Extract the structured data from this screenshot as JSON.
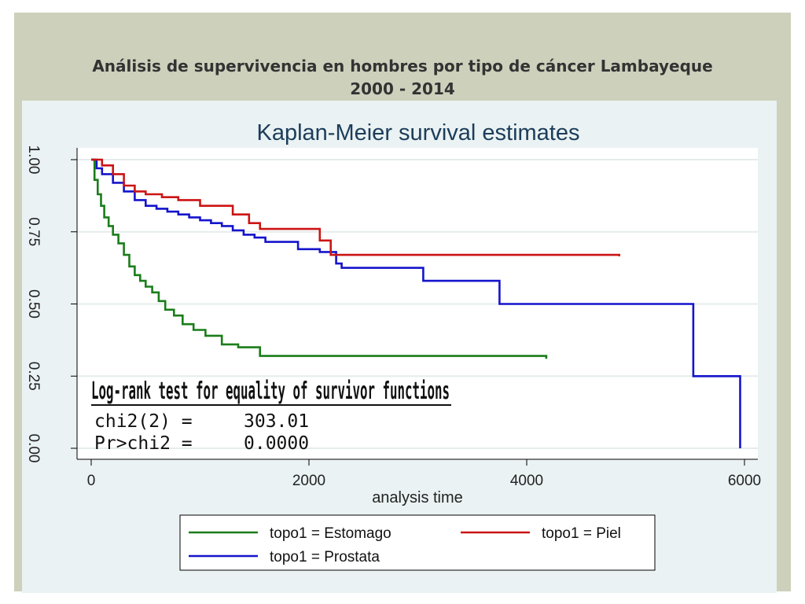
{
  "slide": {
    "title_line1": "Análisis de supervivencia en hombres por tipo de cáncer Lambayeque",
    "title_line2": "2000 - 2014"
  },
  "colors": {
    "frame": "#cdd1bc",
    "graph_region": "#eaf2f3",
    "plot_region": "#ffffff",
    "title_color": "#1c3d5a"
  },
  "chart_data": {
    "type": "line",
    "title": "Kaplan-Meier survival estimates",
    "xlabel": "analysis time",
    "ylabel": "",
    "xlim": [
      0,
      6000
    ],
    "ylim": [
      0,
      1
    ],
    "xticks": [
      0,
      2000,
      4000,
      6000
    ],
    "xtick_labels": [
      "0",
      "2000",
      "4000",
      "6000"
    ],
    "yticks": [
      0,
      0.25,
      0.5,
      0.75,
      1
    ],
    "ytick_labels": [
      "0.00",
      "0.25",
      "0.50",
      "0.75",
      "1.00"
    ],
    "grid": true,
    "legend_position": "bottom",
    "series": [
      {
        "name": "topo1 = Estomago",
        "color": "#1a7d1a",
        "x": [
          0,
          30,
          60,
          90,
          120,
          160,
          200,
          250,
          300,
          350,
          400,
          450,
          500,
          560,
          620,
          680,
          760,
          840,
          940,
          1050,
          1200,
          1350,
          1550,
          4180
        ],
        "y": [
          1.0,
          0.93,
          0.88,
          0.84,
          0.8,
          0.77,
          0.74,
          0.71,
          0.67,
          0.63,
          0.6,
          0.58,
          0.56,
          0.54,
          0.51,
          0.48,
          0.46,
          0.43,
          0.41,
          0.39,
          0.36,
          0.35,
          0.32,
          0.31
        ]
      },
      {
        "name": "topo1 = Prostata",
        "color": "#1414cc",
        "x": [
          0,
          50,
          100,
          200,
          300,
          400,
          500,
          600,
          700,
          800,
          900,
          1000,
          1100,
          1200,
          1300,
          1400,
          1500,
          1600,
          1900,
          2100,
          2250,
          2300,
          3050,
          3750,
          5530,
          5960
        ],
        "y": [
          1.0,
          0.97,
          0.95,
          0.92,
          0.89,
          0.86,
          0.84,
          0.83,
          0.82,
          0.81,
          0.8,
          0.79,
          0.78,
          0.77,
          0.755,
          0.74,
          0.73,
          0.715,
          0.69,
          0.68,
          0.64,
          0.625,
          0.58,
          0.5,
          0.25,
          0.0
        ]
      },
      {
        "name": "topo1 = Piel",
        "color": "#cc1414",
        "x": [
          0,
          100,
          200,
          300,
          400,
          500,
          650,
          800,
          1000,
          1300,
          1450,
          1550,
          2100,
          2200,
          4850
        ],
        "y": [
          1.0,
          0.98,
          0.95,
          0.91,
          0.89,
          0.88,
          0.87,
          0.86,
          0.84,
          0.81,
          0.78,
          0.76,
          0.72,
          0.67,
          0.665
        ]
      }
    ],
    "annotation": {
      "heading": "Log-rank test for equality of survivor functions",
      "line1_label": "chi2(2) =",
      "line1_value": "303.01",
      "line2_label": "Pr>chi2 =",
      "line2_value": "0.0000"
    }
  }
}
